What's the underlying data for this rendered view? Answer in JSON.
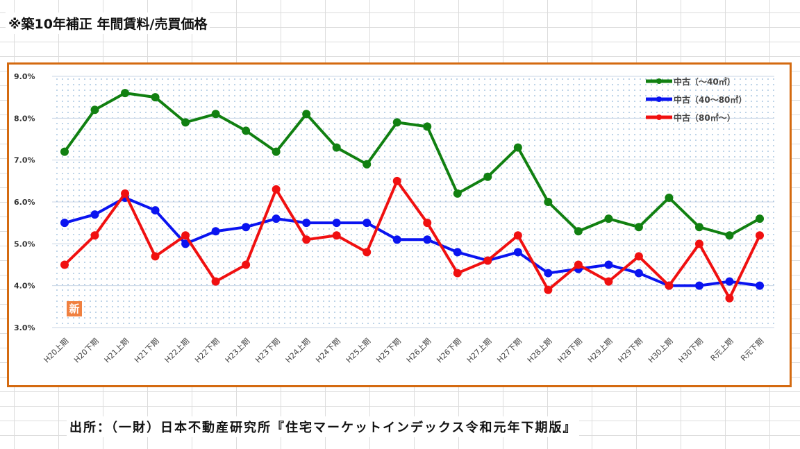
{
  "title": "※築10年補正 年間賃料/売買価格",
  "source": "出所：（一財）日本不動産研究所『住宅マーケットインデックス令和元年下期版』",
  "badge": "新",
  "chart_data": {
    "type": "line",
    "title": "※築10年補正 年間賃料/売買価格",
    "categories": [
      "H20上期",
      "H20下期",
      "H21上期",
      "H21下期",
      "H22上期",
      "H22下期",
      "H23上期",
      "H23下期",
      "H24上期",
      "H24下期",
      "H25上期",
      "H25下期",
      "H26上期",
      "H26下期",
      "H27上期",
      "H27下期",
      "H28上期",
      "H28下期",
      "H29上期",
      "H29下期",
      "H30上期",
      "H30下期",
      "R元上期",
      "R元下期"
    ],
    "yticks": [
      "3.0%",
      "4.0%",
      "5.0%",
      "6.0%",
      "7.0%",
      "8.0%",
      "9.0%"
    ],
    "ylim": [
      3,
      9
    ],
    "legend_position": "top-right",
    "series": [
      {
        "name": "中古（～40㎡）",
        "color": "#118011",
        "values": [
          7.2,
          8.2,
          8.6,
          8.5,
          7.9,
          8.1,
          7.7,
          7.2,
          8.1,
          7.3,
          6.9,
          7.9,
          7.8,
          6.2,
          6.6,
          7.3,
          6.0,
          5.3,
          5.6,
          5.4,
          6.1,
          5.4,
          5.2,
          5.6
        ]
      },
      {
        "name": "中古（40～80㎡）",
        "color": "#0a14f0",
        "values": [
          5.5,
          5.7,
          6.1,
          5.8,
          5.0,
          5.3,
          5.4,
          5.6,
          5.5,
          5.5,
          5.5,
          5.1,
          5.1,
          4.8,
          4.6,
          4.8,
          4.3,
          4.4,
          4.5,
          4.3,
          4.0,
          4.0,
          4.1,
          4.0
        ]
      },
      {
        "name": "中古（80㎡～）",
        "color": "#f01010",
        "values": [
          4.5,
          5.2,
          6.2,
          4.7,
          5.2,
          4.1,
          4.5,
          6.3,
          5.1,
          5.2,
          4.8,
          6.5,
          5.5,
          4.3,
          4.6,
          5.2,
          3.9,
          4.5,
          4.1,
          4.7,
          4.0,
          5.0,
          3.7,
          5.2
        ]
      }
    ]
  }
}
